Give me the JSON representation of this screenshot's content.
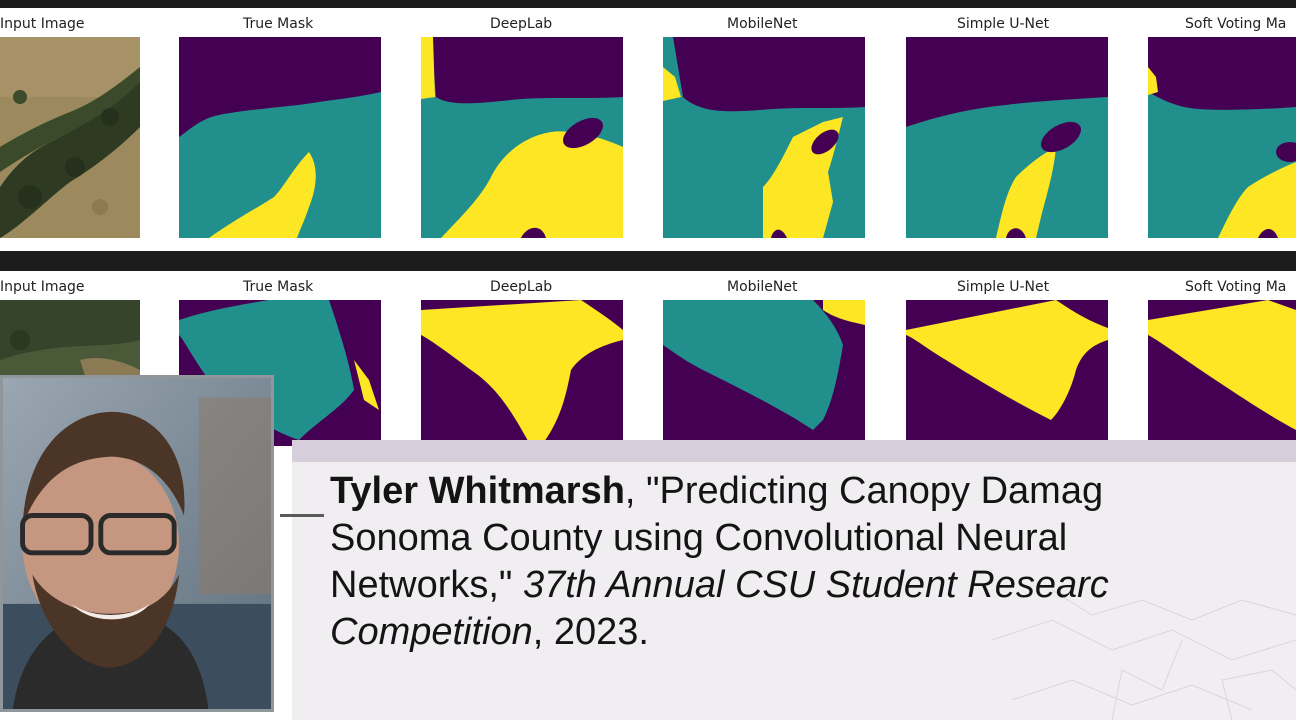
{
  "figure": {
    "rows": [
      {
        "labels": [
          "Input Image",
          "True Mask",
          "DeepLab",
          "MobileNet",
          "Simple U-Net",
          "Soft Voting Ma"
        ]
      },
      {
        "labels": [
          "Input Image",
          "True Mask",
          "DeepLab",
          "MobileNet",
          "Simple U-Net",
          "Soft Voting Ma"
        ]
      }
    ],
    "mask_colors": {
      "class0": "#440154",
      "class1": "#21908d",
      "class2": "#fde725"
    }
  },
  "citation": {
    "author": "Tyler Whitmarsh",
    "title_part1": ", \"Predicting Canopy Damag",
    "title_part2": "Sonoma County using Convolutional Neural",
    "title_part3": "Networks,\" ",
    "venue_line1": "37th Annual CSU Student Researc",
    "venue_line2": "Competition",
    "year": ", 2023."
  }
}
